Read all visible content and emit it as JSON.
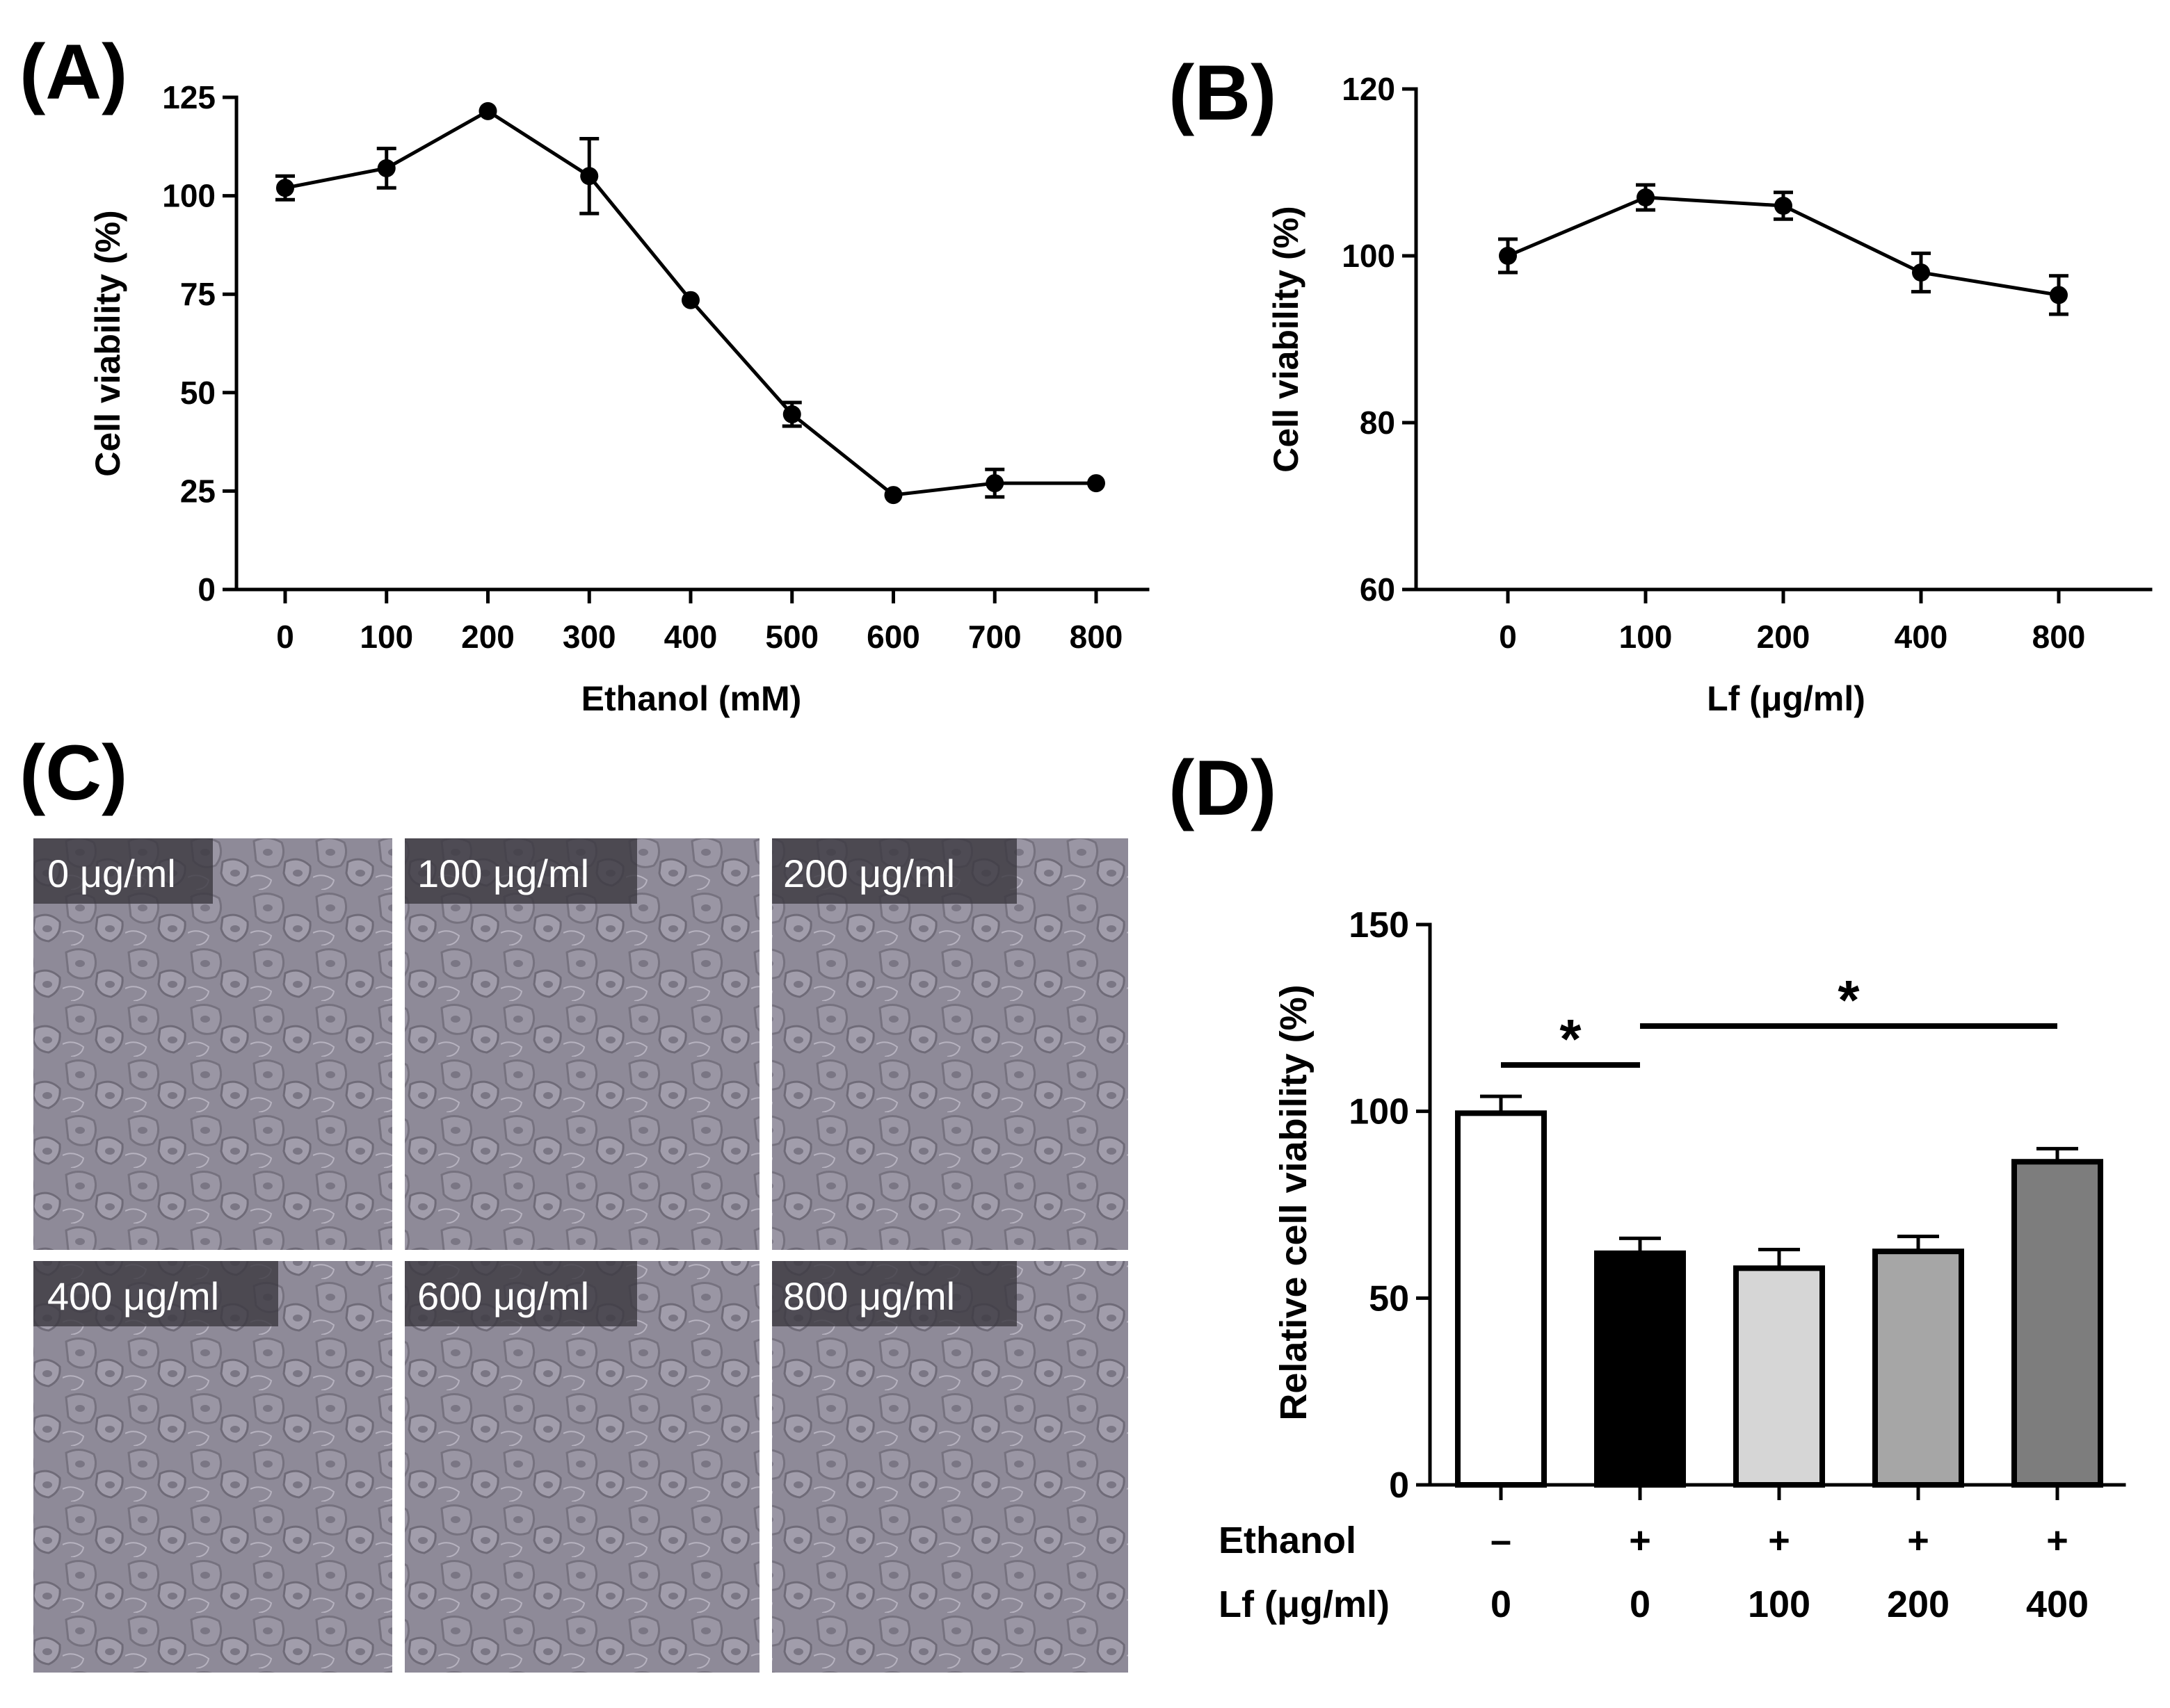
{
  "panels": {
    "A": "(A)",
    "B": "(B)",
    "C": "(C)",
    "D": "(D)"
  },
  "chart_data": [
    {
      "id": "A",
      "type": "line",
      "xlabel": "Ethanol (mM)",
      "ylabel": "Cell viability (%)",
      "ylim": [
        0,
        125
      ],
      "yticks": [
        "0",
        "25",
        "50",
        "75",
        "100",
        "125"
      ],
      "categories": [
        "0",
        "100",
        "200",
        "300",
        "400",
        "500",
        "600",
        "700",
        "800"
      ],
      "series": [
        {
          "name": "Cell viability",
          "values": [
            102,
            107,
            121.5,
            105,
            73.5,
            44.5,
            24,
            27,
            27
          ],
          "errors": [
            3,
            5,
            0.8,
            9.5,
            0.8,
            3,
            0.8,
            3.5,
            0.8
          ]
        }
      ]
    },
    {
      "id": "B",
      "type": "line",
      "xlabel": "Lf (μg/ml)",
      "ylabel": "Cell viability (%)",
      "ylim": [
        60,
        120
      ],
      "yticks": [
        "60",
        "80",
        "100",
        "120"
      ],
      "categories": [
        "0",
        "100",
        "200",
        "400",
        "800"
      ],
      "series": [
        {
          "name": "Cell viability",
          "values": [
            100,
            107,
            106,
            98,
            95.3
          ],
          "errors": [
            2,
            1.5,
            1.6,
            2.3,
            2.3
          ]
        }
      ]
    },
    {
      "id": "D",
      "type": "bar",
      "xlabel": "",
      "ylabel": "Relative cell viability (%)",
      "ylim": [
        0,
        150
      ],
      "yticks": [
        "0",
        "50",
        "100",
        "150"
      ],
      "row_labels": [
        "Ethanol",
        "Lf (μg/ml)"
      ],
      "categories": [
        {
          "ethanol": "–",
          "lf": "0"
        },
        {
          "ethanol": "+",
          "lf": "0"
        },
        {
          "ethanol": "+",
          "lf": "100"
        },
        {
          "ethanol": "+",
          "lf": "200"
        },
        {
          "ethanol": "+",
          "lf": "400"
        }
      ],
      "series": [
        {
          "name": "Relative cell viability",
          "values": [
            99.5,
            62,
            58,
            62.5,
            86.5
          ],
          "errors": [
            4.5,
            4,
            5,
            4,
            3.5
          ],
          "colors": [
            "#ffffff",
            "#000000",
            "#d6d6d6",
            "#a6a6a6",
            "#7d7d7d"
          ]
        }
      ],
      "significance": [
        {
          "from": 0,
          "to": 1,
          "label": "*"
        },
        {
          "from": 1,
          "to": 4,
          "label": "*"
        }
      ]
    }
  ],
  "micrographs": [
    {
      "label": "0 μg/ml"
    },
    {
      "label": "100 μg/ml"
    },
    {
      "label": "200 μg/ml"
    },
    {
      "label": "400 μg/ml"
    },
    {
      "label": "600 μg/ml"
    },
    {
      "label": "800 μg/ml"
    }
  ]
}
